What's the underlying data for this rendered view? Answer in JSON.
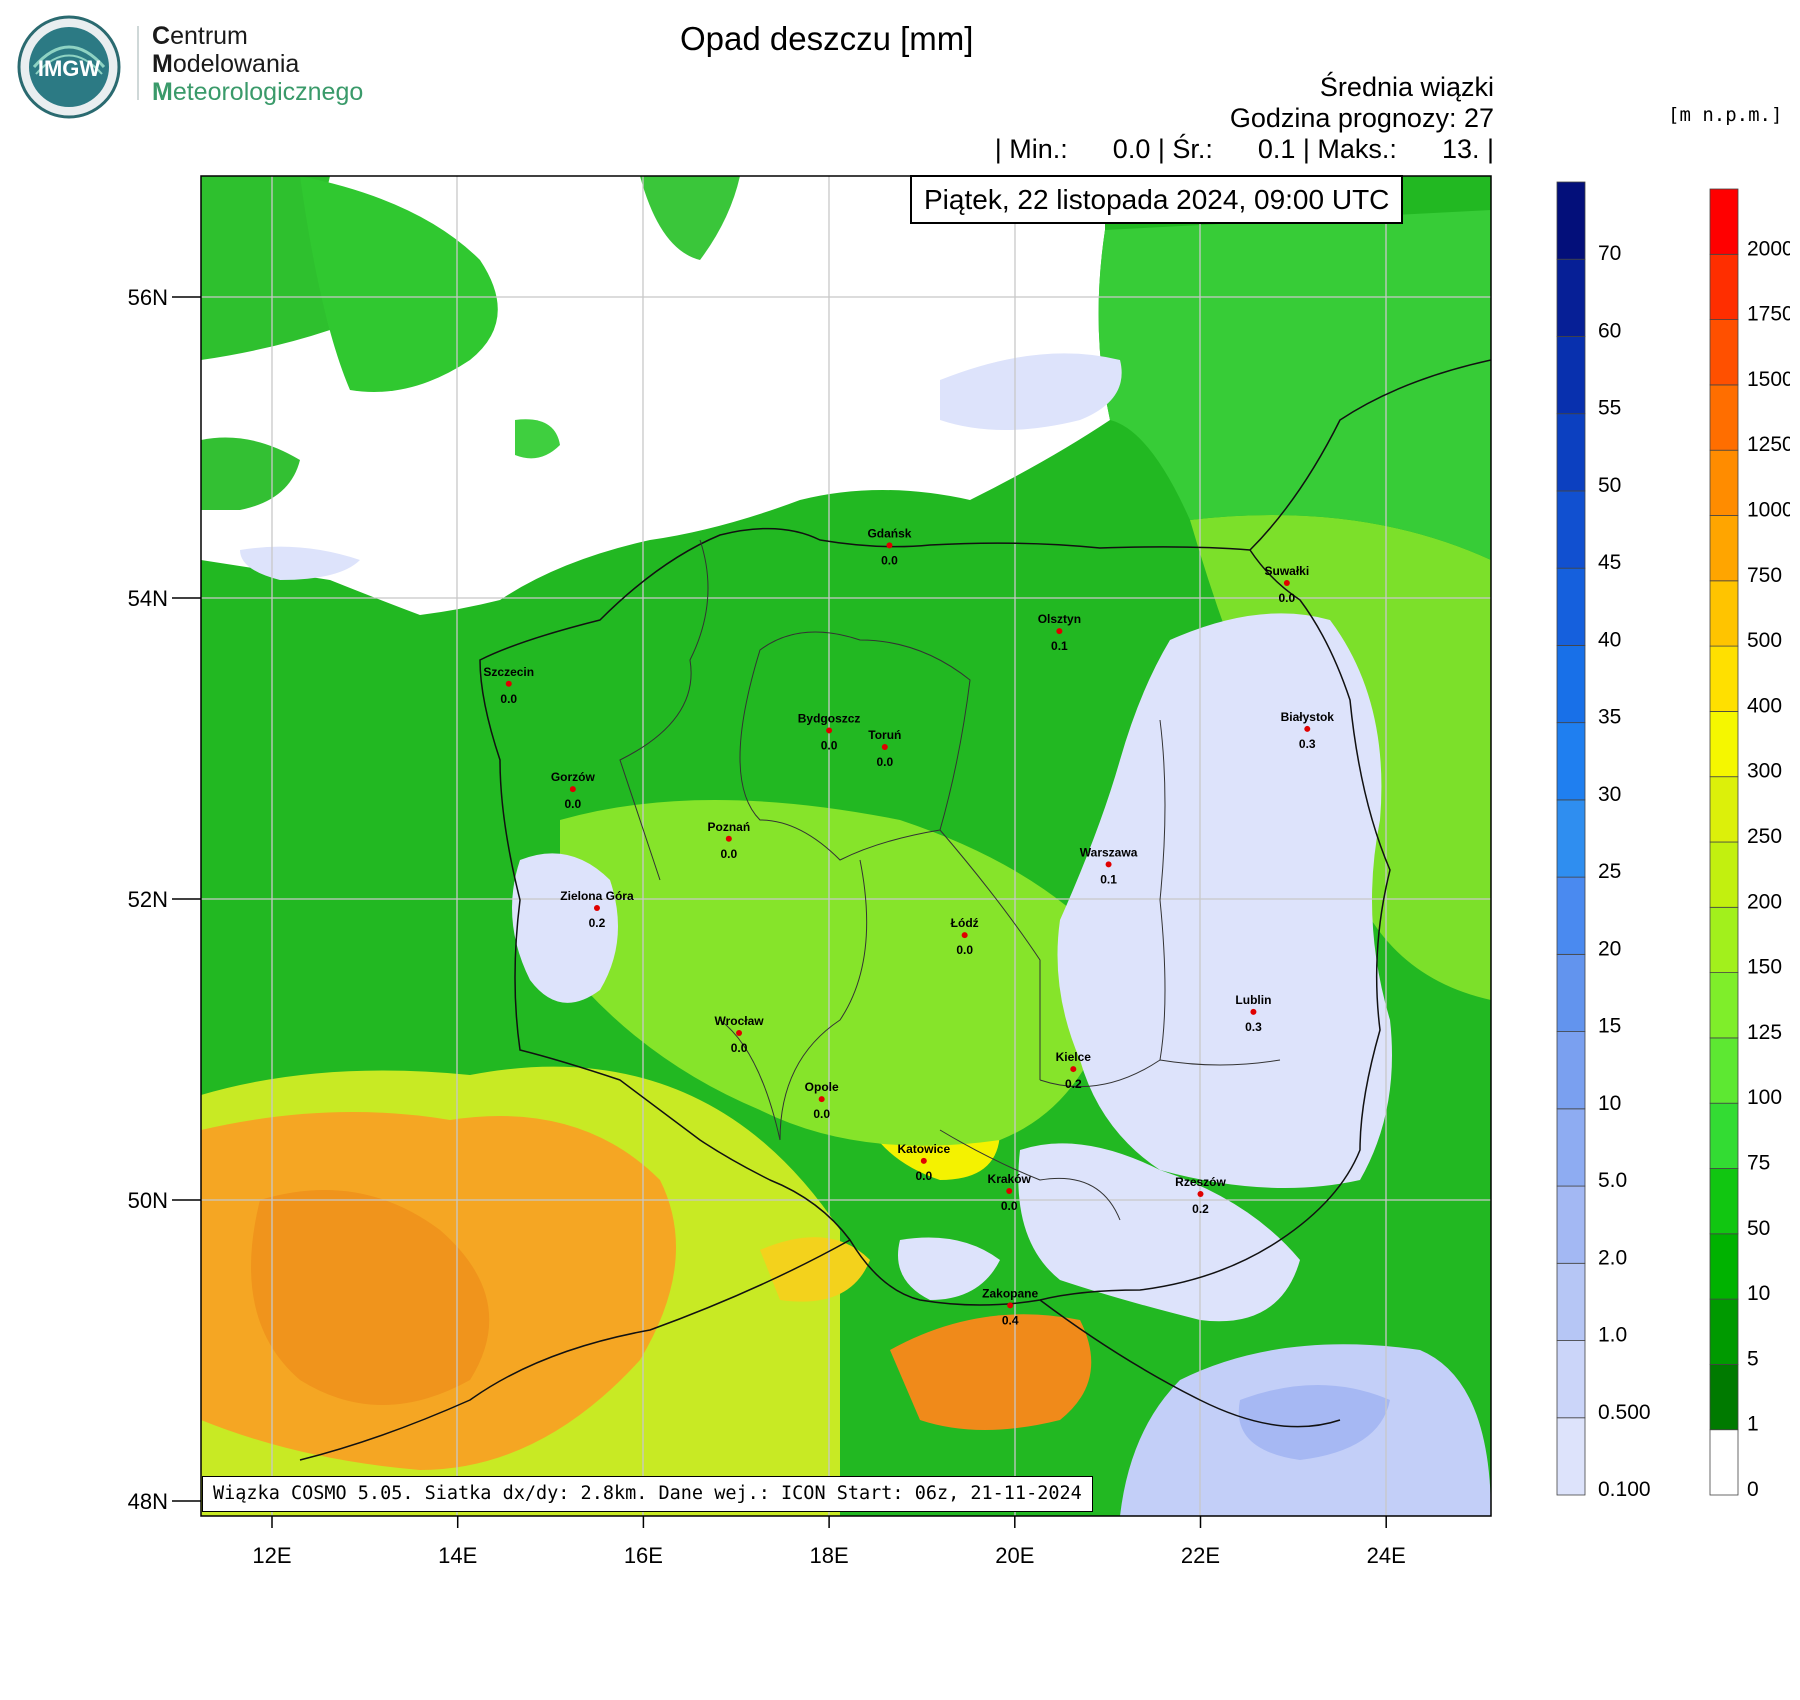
{
  "logo": {
    "badge_text": "IMGW",
    "line1_initial": "C",
    "line1_rest": "entrum",
    "line2_initial": "M",
    "line2_rest": "odelowania",
    "line3_initial": "M",
    "line3_rest": "eteorologicznego"
  },
  "title": "Opad deszczu [mm]",
  "header": {
    "line1": "Średnia wiązki",
    "line2": "Godzina prognozy: 27",
    "line3": "| Min.:      0.0 | Śr.:      0.1 | Maks.:      13. |"
  },
  "date": "Piątek, 22 listopada 2024, 09:00 UTC",
  "info": "Wiązka COSMO 5.05. Siatka dx/dy: 2.8km. Dane wej.: ICON Start: 06z, 21-11-2024",
  "elevation_unit": "[m n.p.m.]",
  "axes": {
    "lon_labels": [
      "12E",
      "14E",
      "16E",
      "18E",
      "20E",
      "22E",
      "24E"
    ],
    "lat_labels": [
      "56N",
      "54N",
      "52N",
      "50N",
      "48N"
    ]
  },
  "precip_scale": {
    "labels": [
      "0.100",
      "0.500",
      "1.0",
      "2.0",
      "5.0",
      "10",
      "15",
      "20",
      "25",
      "30",
      "35",
      "40",
      "45",
      "50",
      "55",
      "60",
      "70"
    ],
    "colors": [
      "#dde3fb",
      "#cbd5f9",
      "#b6c6f5",
      "#a3b8f3",
      "#8eacf2",
      "#7aa0f0",
      "#6294ee",
      "#4a8af0",
      "#2f8ef0",
      "#1f7ff0",
      "#1870e8",
      "#1560dd",
      "#1150d0",
      "#0c40c0",
      "#0830ae",
      "#061f96",
      "#030f7a"
    ]
  },
  "elevation_scale": {
    "labels": [
      "0",
      "1",
      "5",
      "10",
      "50",
      "75",
      "100",
      "125",
      "150",
      "200",
      "250",
      "300",
      "400",
      "500",
      "750",
      "1000",
      "1250",
      "1500",
      "1750",
      "2000"
    ],
    "colors": [
      "#ffffff",
      "#007a00",
      "#009a00",
      "#00b200",
      "#11c611",
      "#33dc33",
      "#5de832",
      "#7fee2a",
      "#a2f01c",
      "#c2f00f",
      "#dcf00a",
      "#f5f700",
      "#ffe000",
      "#ffc400",
      "#ffa500",
      "#ff8c00",
      "#ff6e00",
      "#ff5000",
      "#ff2e00",
      "#ff0000"
    ]
  },
  "cities": [
    {
      "name": "Gdańsk",
      "value": "0.0",
      "lon": 18.65,
      "lat": 54.35
    },
    {
      "name": "Suwałki",
      "value": "0.0",
      "lon": 22.93,
      "lat": 54.1
    },
    {
      "name": "Olsztyn",
      "value": "0.1",
      "lon": 20.48,
      "lat": 53.78
    },
    {
      "name": "Szczecin",
      "value": "0.0",
      "lon": 14.55,
      "lat": 53.43
    },
    {
      "name": "Bydgoszcz",
      "value": "0.0",
      "lon": 18.0,
      "lat": 53.12
    },
    {
      "name": "Toruń",
      "value": "0.0",
      "lon": 18.6,
      "lat": 53.01
    },
    {
      "name": "Białystok",
      "value": "0.3",
      "lon": 23.15,
      "lat": 53.13
    },
    {
      "name": "Gorzów",
      "value": "0.0",
      "lon": 15.24,
      "lat": 52.73
    },
    {
      "name": "Poznań",
      "value": "0.0",
      "lon": 16.92,
      "lat": 52.4
    },
    {
      "name": "Warszawa",
      "value": "0.1",
      "lon": 21.01,
      "lat": 52.23
    },
    {
      "name": "Zielona Góra",
      "value": "0.2",
      "lon": 15.5,
      "lat": 51.94
    },
    {
      "name": "Łódź",
      "value": "0.0",
      "lon": 19.46,
      "lat": 51.76
    },
    {
      "name": "Lublin",
      "value": "0.3",
      "lon": 22.57,
      "lat": 51.25
    },
    {
      "name": "Wrocław",
      "value": "0.0",
      "lon": 17.03,
      "lat": 51.11
    },
    {
      "name": "Kielce",
      "value": "0.2",
      "lon": 20.63,
      "lat": 50.87
    },
    {
      "name": "Opole",
      "value": "0.0",
      "lon": 17.92,
      "lat": 50.67
    },
    {
      "name": "Katowice",
      "value": "0.0",
      "lon": 19.02,
      "lat": 50.26
    },
    {
      "name": "Kraków",
      "value": "0.0",
      "lon": 19.94,
      "lat": 50.06
    },
    {
      "name": "Rzeszów",
      "value": "0.2",
      "lon": 22.0,
      "lat": 50.04
    },
    {
      "name": "Zakopane",
      "value": "0.4",
      "lon": 19.95,
      "lat": 49.3
    }
  ]
}
